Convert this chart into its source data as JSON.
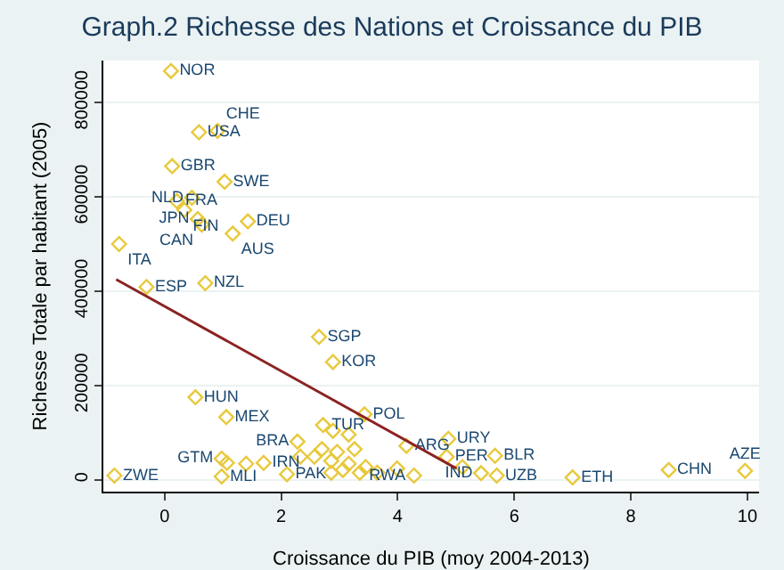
{
  "chart_data": {
    "type": "scatter",
    "title": "Graph.2 Richesse des Nations et Croissance du PIB",
    "xlabel": "Croissance du PIB (moy 2004-2013)",
    "ylabel": "Richesse Totale par habitant (2005)",
    "xlim": [
      -1.05,
      10.2
    ],
    "ylim": [
      -25000,
      889000
    ],
    "xticks": [
      0,
      2,
      4,
      6,
      8,
      10
    ],
    "yticks": [
      0,
      200000,
      400000,
      600000,
      800000
    ],
    "grid": "y",
    "series": [
      {
        "marker": "diamond",
        "color": "#e8c93c",
        "x": [
          0.11,
          0.59,
          0.91,
          0.13,
          1.03,
          0.21,
          0.47,
          0.34,
          0.57,
          0.64,
          1.43,
          1.17,
          -0.78,
          -0.31,
          0.7,
          2.65,
          2.89,
          0.53,
          1.06,
          3.43,
          2.72,
          2.28,
          0.98,
          0.98,
          -0.86,
          1.7,
          2.1,
          4.87,
          4.15,
          4.84,
          5.67,
          5.7,
          5.43,
          7.0,
          8.65,
          9.96,
          4.28,
          5.11,
          2.89,
          3.16,
          2.7,
          2.96,
          3.26,
          2.33,
          2.57,
          2.86,
          3.16,
          3.45,
          3.06,
          3.35,
          3.65,
          3.99,
          2.86,
          1.4,
          1.07
        ],
        "values": [
          867000,
          737000,
          740000,
          665000,
          632000,
          591000,
          598000,
          572000,
          553000,
          541000,
          548000,
          522000,
          500000,
          409000,
          417000,
          303000,
          250000,
          175000,
          133000,
          139000,
          116000,
          81000,
          45000,
          7000,
          9000,
          36000,
          12000,
          87000,
          72000,
          49000,
          51000,
          9000,
          14000,
          5000,
          21000,
          19000,
          9000,
          27000,
          104000,
          96000,
          65000,
          59000,
          65000,
          49000,
          49000,
          40000,
          34000,
          27000,
          21000,
          15000,
          15000,
          24000,
          15000,
          34000,
          36000
        ],
        "value_labels": [
          "NOR",
          "USA",
          "CHE",
          "GBR",
          "SWE",
          "FRA",
          "NLD",
          "FIN",
          "JPN",
          "CAN",
          "DEU",
          "AUS",
          "ITA",
          "ESP",
          "NZL",
          "SGP",
          "KOR",
          "HUN",
          "MEX",
          "POL",
          "TUR",
          "BRA",
          "GTM",
          "MLI",
          "ZWE",
          "IRN",
          "PAK",
          "URY",
          "ARG",
          "PER",
          "BLR",
          "UZB",
          "IND",
          "ETH",
          "CHN",
          "AZE",
          "RWA",
          null,
          null,
          null,
          null,
          null,
          null,
          null,
          null,
          null,
          null,
          null,
          null,
          null,
          null,
          null,
          null,
          null,
          null
        ]
      },
      {
        "type": "line",
        "color": "#8b2323",
        "x": [
          -0.83,
          5.01
        ],
        "values": [
          425000,
          24000
        ]
      }
    ]
  }
}
